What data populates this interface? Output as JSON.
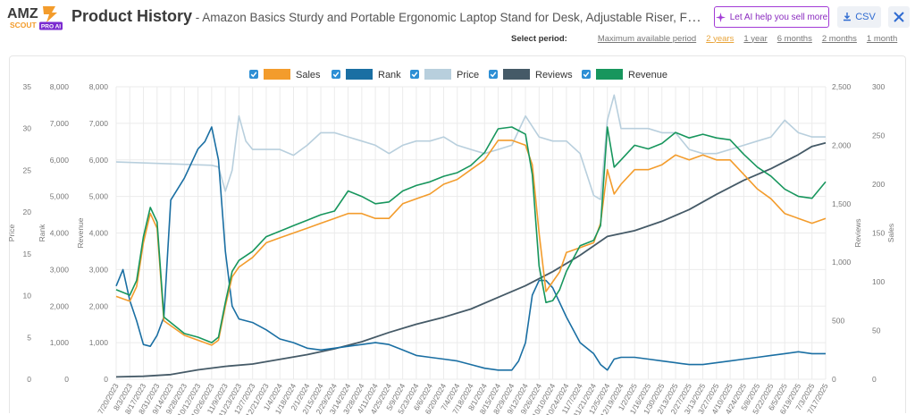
{
  "header": {
    "logo_text_1": "AMZ",
    "logo_text_2": "SCOUT",
    "logo_badge": "PRO AI",
    "title": "Product History",
    "subtitle": " - Amazon Basics Sturdy and Portable Ergonomic Laptop Stand for Desk, Adjustable Riser, Fits all Laptops and Tablets, Silver",
    "ai_button": "Let AI help you sell more",
    "csv_button": "CSV",
    "close_icon": "close-icon",
    "ai_icon": "sparkle-icon",
    "csv_icon": "download-icon"
  },
  "period": {
    "label": "Select period:",
    "options": [
      "Maximum available period",
      "2 years",
      "1 year",
      "6 months",
      "2 months",
      "1 month"
    ],
    "active": "2 years"
  },
  "colors": {
    "sales": "#f39c2c",
    "rank": "#1a6fa3",
    "price": "#b8cfdd",
    "reviews": "#455a67",
    "revenue": "#17965d",
    "checkbox": "#2d8fd5",
    "grid": "#ebebeb",
    "axis_text": "#777777"
  },
  "chart_data": {
    "type": "line",
    "legend": [
      {
        "key": "sales",
        "label": "Sales",
        "checked": true
      },
      {
        "key": "rank",
        "label": "Rank",
        "checked": true
      },
      {
        "key": "price",
        "label": "Price",
        "checked": true
      },
      {
        "key": "reviews",
        "label": "Reviews",
        "checked": true
      },
      {
        "key": "revenue",
        "label": "Revenue",
        "checked": true
      }
    ],
    "axes": {
      "price": {
        "title": "Price",
        "side": "left",
        "min": 0,
        "max": 35,
        "ticks": [
          "0",
          "5",
          "10",
          "15",
          "20",
          "25",
          "30",
          "35"
        ]
      },
      "rank": {
        "title": "Rank",
        "side": "left",
        "min": 0,
        "max": 8000,
        "ticks": [
          "0",
          "1,000",
          "2,000",
          "3,000",
          "4,000",
          "5,000",
          "6,000",
          "7,000",
          "8,000"
        ]
      },
      "revenue": {
        "title": "Revenue",
        "side": "left",
        "min": 0,
        "max": 8000,
        "ticks": [
          "0",
          "1,000",
          "2,000",
          "3,000",
          "4,000",
          "5,000",
          "6,000",
          "7,000",
          "8,000"
        ]
      },
      "reviews": {
        "title": "Reviews",
        "side": "right",
        "min": 0,
        "max": 2500,
        "ticks": [
          "0",
          "500",
          "1,000",
          "1,500",
          "2,000",
          "2,500"
        ]
      },
      "sales": {
        "title": "Sales",
        "side": "right",
        "min": 0,
        "max": 300,
        "ticks": [
          "0",
          "50",
          "100",
          "150",
          "200",
          "250",
          "300"
        ]
      }
    },
    "x_labels": [
      "7/20/2023",
      "8/3/2023",
      "8/17/2023",
      "8/31/2023",
      "9/14/2023",
      "9/28/2023",
      "10/12/2023",
      "10/26/2023",
      "11/9/2023",
      "11/23/2023",
      "12/7/2023",
      "12/21/2023",
      "1/4/2024",
      "1/18/2024",
      "2/1/2024",
      "2/15/2024",
      "2/29/2024",
      "3/14/2024",
      "3/28/2024",
      "4/11/2024",
      "4/25/2024",
      "5/9/2024",
      "5/23/2024",
      "6/6/2024",
      "6/20/2024",
      "7/4/2024",
      "7/18/2024",
      "8/1/2024",
      "8/15/2024",
      "8/29/2024",
      "9/12/2024",
      "9/26/2024",
      "10/10/2024",
      "10/24/2024",
      "11/7/2024",
      "11/21/2024",
      "12/5/2024",
      "12/19/2024",
      "1/2/2025",
      "1/16/2025",
      "1/30/2025",
      "2/13/2025",
      "2/27/2025",
      "3/13/2025",
      "3/27/2025",
      "4/10/2025",
      "4/24/2025",
      "5/8/2025",
      "5/22/2025",
      "6/5/2025",
      "6/19/2025",
      "7/3/2025",
      "7/17/2025"
    ],
    "series": {
      "sales": [
        [
          0,
          85
        ],
        [
          1,
          80
        ],
        [
          1.5,
          95
        ],
        [
          2,
          140
        ],
        [
          2.5,
          170
        ],
        [
          3,
          155
        ],
        [
          3.5,
          60
        ],
        [
          4,
          55
        ],
        [
          5,
          45
        ],
        [
          6,
          40
        ],
        [
          7,
          35
        ],
        [
          7.5,
          40
        ],
        [
          8,
          75
        ],
        [
          8.5,
          105
        ],
        [
          9,
          115
        ],
        [
          10,
          125
        ],
        [
          11,
          140
        ],
        [
          12,
          145
        ],
        [
          13,
          150
        ],
        [
          14,
          155
        ],
        [
          15,
          160
        ],
        [
          16,
          165
        ],
        [
          17,
          170
        ],
        [
          18,
          170
        ],
        [
          19,
          165
        ],
        [
          20,
          165
        ],
        [
          21,
          180
        ],
        [
          22,
          185
        ],
        [
          23,
          190
        ],
        [
          24,
          200
        ],
        [
          25,
          205
        ],
        [
          26,
          215
        ],
        [
          27,
          225
        ],
        [
          28,
          245
        ],
        [
          29,
          245
        ],
        [
          30,
          240
        ],
        [
          30.5,
          220
        ],
        [
          31,
          150
        ],
        [
          31.5,
          90
        ],
        [
          32,
          100
        ],
        [
          32.5,
          110
        ],
        [
          33,
          130
        ],
        [
          34,
          135
        ],
        [
          35,
          140
        ],
        [
          35.5,
          160
        ],
        [
          36,
          215
        ],
        [
          36.5,
          190
        ],
        [
          37,
          200
        ],
        [
          38,
          215
        ],
        [
          39,
          215
        ],
        [
          40,
          220
        ],
        [
          41,
          230
        ],
        [
          42,
          225
        ],
        [
          43,
          230
        ],
        [
          44,
          225
        ],
        [
          45,
          225
        ],
        [
          46,
          210
        ],
        [
          47,
          195
        ],
        [
          48,
          185
        ],
        [
          49,
          170
        ],
        [
          50,
          165
        ],
        [
          51,
          160
        ],
        [
          52,
          165
        ]
      ],
      "revenue": [
        [
          0,
          2450
        ],
        [
          1,
          2300
        ],
        [
          1.5,
          2700
        ],
        [
          2,
          3900
        ],
        [
          2.5,
          4700
        ],
        [
          3,
          4300
        ],
        [
          3.5,
          1700
        ],
        [
          4,
          1550
        ],
        [
          5,
          1250
        ],
        [
          6,
          1150
        ],
        [
          7,
          1000
        ],
        [
          7.5,
          1150
        ],
        [
          8,
          2100
        ],
        [
          8.5,
          2950
        ],
        [
          9,
          3250
        ],
        [
          10,
          3500
        ],
        [
          11,
          3900
        ],
        [
          12,
          4050
        ],
        [
          13,
          4200
        ],
        [
          14,
          4350
        ],
        [
          15,
          4500
        ],
        [
          16,
          4600
        ],
        [
          17,
          5150
        ],
        [
          18,
          5000
        ],
        [
          19,
          4800
        ],
        [
          20,
          4850
        ],
        [
          21,
          5150
        ],
        [
          22,
          5300
        ],
        [
          23,
          5400
        ],
        [
          24,
          5550
        ],
        [
          25,
          5650
        ],
        [
          26,
          5850
        ],
        [
          27,
          6200
        ],
        [
          28,
          6850
        ],
        [
          29,
          6900
        ],
        [
          30,
          6700
        ],
        [
          30.5,
          5600
        ],
        [
          31,
          3100
        ],
        [
          31.5,
          2100
        ],
        [
          32,
          2150
        ],
        [
          32.5,
          2450
        ],
        [
          33,
          2950
        ],
        [
          34,
          3650
        ],
        [
          35,
          3800
        ],
        [
          35.5,
          4200
        ],
        [
          36,
          6900
        ],
        [
          36.5,
          5800
        ],
        [
          37,
          6000
        ],
        [
          38,
          6400
        ],
        [
          39,
          6300
        ],
        [
          40,
          6450
        ],
        [
          41,
          6750
        ],
        [
          42,
          6600
        ],
        [
          43,
          6700
        ],
        [
          44,
          6600
        ],
        [
          45,
          6550
        ],
        [
          46,
          6150
        ],
        [
          47,
          5800
        ],
        [
          48,
          5550
        ],
        [
          49,
          5200
        ],
        [
          50,
          5000
        ],
        [
          51,
          4950
        ],
        [
          52,
          5400
        ]
      ],
      "rank": [
        [
          0,
          2550
        ],
        [
          0.5,
          3000
        ],
        [
          1,
          2150
        ],
        [
          1.5,
          1600
        ],
        [
          2,
          950
        ],
        [
          2.5,
          900
        ],
        [
          3,
          1200
        ],
        [
          3.5,
          1700
        ],
        [
          4,
          4900
        ],
        [
          5,
          5500
        ],
        [
          6,
          6300
        ],
        [
          6.5,
          6500
        ],
        [
          7,
          6900
        ],
        [
          7.5,
          6000
        ],
        [
          8,
          3500
        ],
        [
          8.5,
          2000
        ],
        [
          9,
          1650
        ],
        [
          10,
          1550
        ],
        [
          11,
          1350
        ],
        [
          12,
          1100
        ],
        [
          13,
          1000
        ],
        [
          14,
          850
        ],
        [
          15,
          800
        ],
        [
          16,
          850
        ],
        [
          17,
          900
        ],
        [
          18,
          950
        ],
        [
          19,
          1000
        ],
        [
          20,
          950
        ],
        [
          21,
          800
        ],
        [
          22,
          650
        ],
        [
          23,
          600
        ],
        [
          24,
          550
        ],
        [
          25,
          500
        ],
        [
          26,
          400
        ],
        [
          27,
          300
        ],
        [
          28,
          250
        ],
        [
          29,
          250
        ],
        [
          29.5,
          500
        ],
        [
          30,
          1000
        ],
        [
          30.5,
          2300
        ],
        [
          31,
          2700
        ],
        [
          31.5,
          2700
        ],
        [
          32,
          2500
        ],
        [
          33,
          1700
        ],
        [
          34,
          1000
        ],
        [
          35,
          700
        ],
        [
          35.5,
          400
        ],
        [
          36,
          250
        ],
        [
          36.5,
          550
        ],
        [
          37,
          600
        ],
        [
          38,
          600
        ],
        [
          39,
          550
        ],
        [
          40,
          500
        ],
        [
          41,
          450
        ],
        [
          42,
          400
        ],
        [
          43,
          400
        ],
        [
          44,
          450
        ],
        [
          45,
          500
        ],
        [
          46,
          550
        ],
        [
          47,
          600
        ],
        [
          48,
          650
        ],
        [
          49,
          700
        ],
        [
          50,
          750
        ],
        [
          51,
          700
        ],
        [
          52,
          700
        ]
      ],
      "price": [
        [
          0,
          26
        ],
        [
          7,
          25.6
        ],
        [
          7.5,
          25.4
        ],
        [
          8,
          22.5
        ],
        [
          8.5,
          25
        ],
        [
          9,
          31.5
        ],
        [
          9.5,
          28.5
        ],
        [
          10,
          27.5
        ],
        [
          11,
          27.5
        ],
        [
          12,
          27.5
        ],
        [
          13,
          26.8
        ],
        [
          14,
          28
        ],
        [
          15,
          29.5
        ],
        [
          16,
          29.5
        ],
        [
          17,
          29
        ],
        [
          18,
          28.5
        ],
        [
          19,
          28
        ],
        [
          20,
          27
        ],
        [
          21,
          28
        ],
        [
          22,
          28.5
        ],
        [
          23,
          28.5
        ],
        [
          24,
          29
        ],
        [
          25,
          28
        ],
        [
          26,
          27.5
        ],
        [
          27,
          27
        ],
        [
          28,
          27.5
        ],
        [
          29,
          28
        ],
        [
          30,
          31.5
        ],
        [
          31,
          29
        ],
        [
          32,
          28.5
        ],
        [
          33,
          28.5
        ],
        [
          34,
          27
        ],
        [
          35,
          22
        ],
        [
          35.5,
          21.5
        ],
        [
          36,
          31
        ],
        [
          36.5,
          34
        ],
        [
          37,
          30
        ],
        [
          38,
          30
        ],
        [
          39,
          30
        ],
        [
          40,
          29.5
        ],
        [
          41,
          29.5
        ],
        [
          42,
          27.5
        ],
        [
          43,
          27
        ],
        [
          44,
          27
        ],
        [
          45,
          27.5
        ],
        [
          46,
          28
        ],
        [
          47,
          28.5
        ],
        [
          48,
          29
        ],
        [
          49,
          31
        ],
        [
          50,
          29.5
        ],
        [
          51,
          29
        ],
        [
          52,
          29
        ]
      ],
      "reviews": [
        [
          0,
          20
        ],
        [
          2,
          25
        ],
        [
          4,
          40
        ],
        [
          6,
          80
        ],
        [
          8,
          110
        ],
        [
          10,
          130
        ],
        [
          12,
          170
        ],
        [
          14,
          210
        ],
        [
          16,
          260
        ],
        [
          18,
          320
        ],
        [
          20,
          400
        ],
        [
          22,
          470
        ],
        [
          24,
          530
        ],
        [
          26,
          600
        ],
        [
          28,
          700
        ],
        [
          30,
          800
        ],
        [
          32,
          920
        ],
        [
          34,
          1060
        ],
        [
          36,
          1220
        ],
        [
          38,
          1270
        ],
        [
          40,
          1350
        ],
        [
          42,
          1450
        ],
        [
          44,
          1580
        ],
        [
          46,
          1700
        ],
        [
          48,
          1800
        ],
        [
          50,
          1920
        ],
        [
          51,
          1990
        ],
        [
          52,
          2020
        ]
      ]
    }
  }
}
